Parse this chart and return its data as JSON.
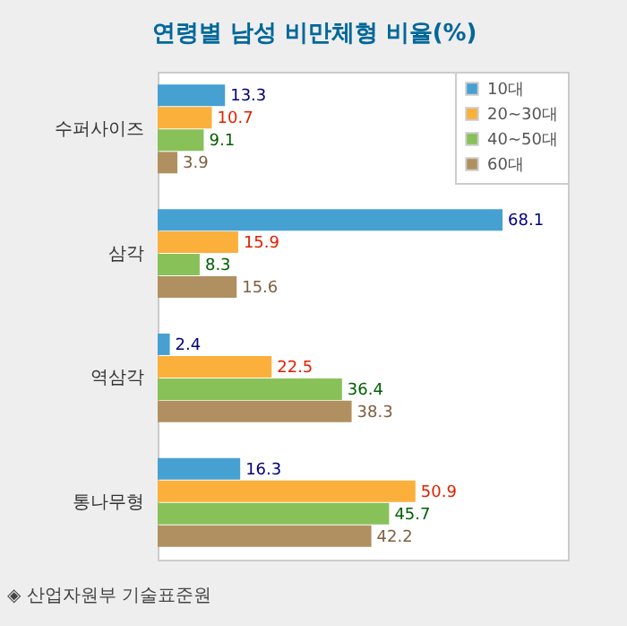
{
  "chart_data": {
    "type": "bar",
    "orientation": "horizontal",
    "title": "연령별 남성 비만체형 비율(%)",
    "categories": [
      "수퍼사이즈",
      "삼각",
      "역삼각",
      "통나무형"
    ],
    "series": [
      {
        "name": "10대",
        "color": "#46a0d2",
        "values": [
          13.3,
          68.1,
          2.4,
          16.3
        ]
      },
      {
        "name": "20~30대",
        "color": "#fbb03b",
        "values": [
          10.7,
          15.9,
          22.5,
          50.9
        ]
      },
      {
        "name": "40~50대",
        "color": "#89c159",
        "values": [
          9.1,
          8.3,
          36.4,
          45.7
        ]
      },
      {
        "name": "60대",
        "color": "#b09060",
        "values": [
          3.9,
          15.6,
          38.3,
          42.2
        ]
      }
    ],
    "xlim": [
      0,
      81
    ],
    "data_labels": true,
    "legend": "top right",
    "tick_labels": "y",
    "annotations": [
      "◈ 산업자원부 기술표준원"
    ]
  }
}
